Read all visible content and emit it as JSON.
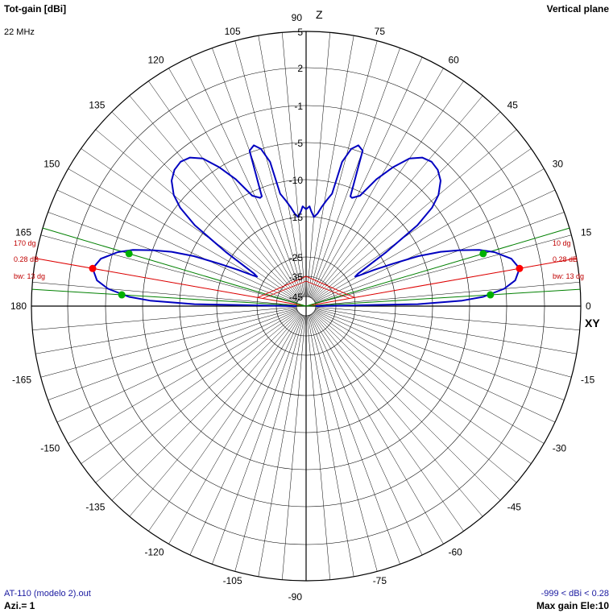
{
  "header": {
    "title": "Tot-gain [dBi]",
    "frequency": "22 MHz",
    "plane": "Vertical plane"
  },
  "footer": {
    "file": "AT-110 (modelo 2).out",
    "azimuth": "Azi.= 1",
    "range": "-999 < dBi < 0.28",
    "max_gain": "Max gain Ele:10"
  },
  "axis_names": {
    "z": "Z",
    "xy": "XY"
  },
  "colors": {
    "pattern": "#0000c0",
    "grid": "#000000",
    "main_lobe": "#e00000",
    "beamwidth": "#008000",
    "marker_max": "#ff0000",
    "marker_bw": "#00b000"
  },
  "annotations": {
    "right": {
      "angle": "10 dg",
      "gain": "0.28 dB",
      "bw": "bw: 13 dg"
    },
    "left": {
      "angle": "170 dg",
      "gain": "0.28 dB",
      "bw": "bw: 13 dg"
    }
  },
  "chart_data": {
    "type": "polar",
    "title": "Tot-gain [dBi]",
    "angle_unit": "deg",
    "angle_labels": [
      0,
      15,
      30,
      45,
      60,
      75,
      90,
      105,
      120,
      135,
      150,
      165,
      180,
      -165,
      -150,
      -135,
      -120,
      -105,
      -90,
      -75,
      -60,
      -45,
      -30,
      -15
    ],
    "radial_ticks": [
      5,
      2,
      -1,
      -5,
      -10,
      -15,
      -25,
      -35,
      -45
    ],
    "grid": true,
    "max_gain_dbi": 0.28,
    "max_gain_elevation_deg": 10,
    "beamwidth_deg": 13,
    "beamwidth_edges_deg": [
      3.5,
      16.5
    ],
    "main_lobe_directions_deg": [
      10,
      170
    ],
    "series": [
      {
        "elevation_deg": [
          0,
          1,
          2,
          3,
          5,
          7,
          10,
          13,
          16,
          18,
          20,
          22,
          24,
          26,
          28,
          30,
          31,
          32,
          34,
          36,
          38,
          40,
          43,
          46,
          49,
          52,
          55,
          58,
          61,
          64,
          67,
          68,
          70,
          72,
          74,
          76,
          77,
          79,
          81,
          83,
          85,
          87,
          88,
          89,
          90
        ],
        "gain_dbi": [
          -45,
          -12,
          -6,
          -3.5,
          -1.2,
          -0.2,
          0.28,
          -0.2,
          -1.5,
          -3,
          -5,
          -7.5,
          -10.5,
          -14,
          -18,
          -22,
          -23,
          -22,
          -14,
          -8.5,
          -5.5,
          -4,
          -2.8,
          -2.2,
          -2,
          -2.3,
          -3.2,
          -5,
          -7.5,
          -10.5,
          -11.2,
          -11.1,
          -4.8,
          -4.4,
          -5,
          -7,
          -11.5,
          -12.5,
          -13.5,
          -14.5,
          -15,
          -14.2,
          -13.6,
          -13.8,
          -14
        ]
      }
    ]
  }
}
